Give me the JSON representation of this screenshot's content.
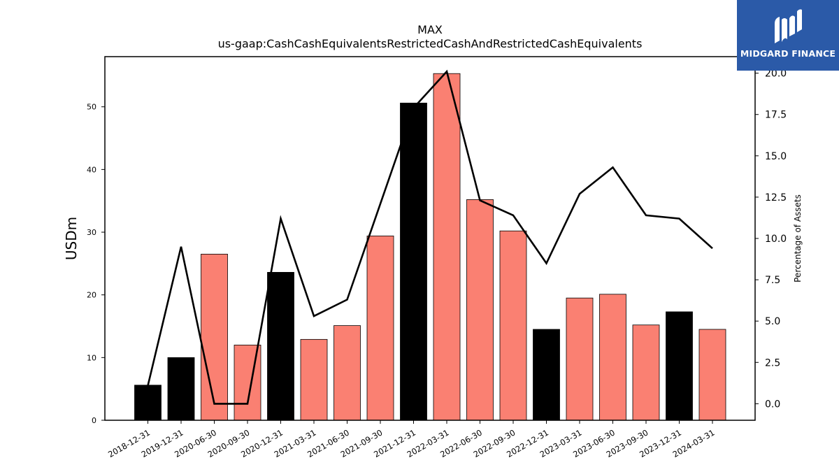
{
  "chart_data": {
    "type": "bar+line",
    "title": "MAX",
    "subtitle": "us-gaap:CashCashEquivalentsRestrictedCashAndRestrictedCashEquivalents",
    "ylabel": "USDm",
    "y2label": "Percentage of Assets",
    "ylim": [
      0,
      58
    ],
    "y2lim": [
      -1.0,
      21.0
    ],
    "yticks": [
      0,
      10,
      20,
      30,
      40,
      50
    ],
    "y2ticks": [
      0.0,
      2.5,
      5.0,
      7.5,
      10.0,
      12.5,
      15.0,
      17.5,
      20.0
    ],
    "categories": [
      "2018-12-31",
      "2019-12-31",
      "2020-06-30",
      "2020-09-30",
      "2020-12-31",
      "2021-03-31",
      "2021-06-30",
      "2021-09-30",
      "2021-12-31",
      "2022-03-31",
      "2022-06-30",
      "2022-09-30",
      "2022-12-31",
      "2023-03-31",
      "2023-06-30",
      "2023-09-30",
      "2023-12-31",
      "2024-03-31"
    ],
    "series": [
      {
        "type": "bar",
        "values": [
          5.6,
          10.0,
          26.5,
          12.0,
          23.6,
          12.9,
          15.1,
          29.4,
          50.6,
          55.3,
          35.2,
          30.2,
          14.5,
          19.5,
          20.1,
          15.2,
          17.3,
          14.5
        ],
        "colors": [
          "#000000",
          "#000000",
          "#fa8072",
          "#fa8072",
          "#000000",
          "#fa8072",
          "#fa8072",
          "#fa8072",
          "#000000",
          "#fa8072",
          "#fa8072",
          "#fa8072",
          "#000000",
          "#fa8072",
          "#fa8072",
          "#fa8072",
          "#000000",
          "#fa8072"
        ]
      },
      {
        "type": "line",
        "axis": "right",
        "color": "#000000",
        "values": [
          1.1,
          9.5,
          0.0,
          0.0,
          11.2,
          5.3,
          6.3,
          12.1,
          17.9,
          20.1,
          12.3,
          11.4,
          8.5,
          12.7,
          14.3,
          11.4,
          11.2,
          9.4
        ]
      }
    ],
    "grid": false,
    "legend": "none"
  },
  "logo": {
    "text": "MIDGARD FINANCE"
  }
}
